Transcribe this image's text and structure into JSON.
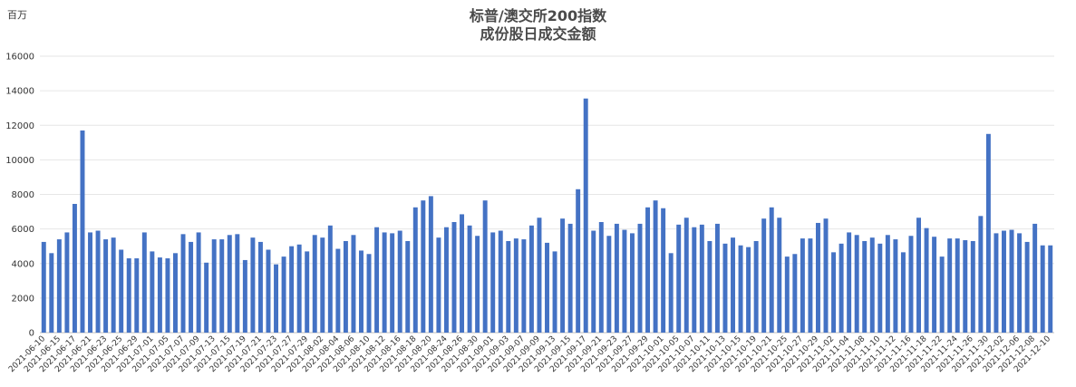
{
  "chart_data": {
    "type": "bar",
    "title": "标普/澳交所200指数",
    "subtitle": "成份股日成交金额",
    "unit_label": "百万",
    "xlabel": "",
    "ylabel": "",
    "ylim": [
      0,
      16000
    ],
    "yticks": [
      0,
      2000,
      4000,
      6000,
      8000,
      10000,
      12000,
      14000,
      16000
    ],
    "grid": true,
    "legend": "none",
    "bar_color": "#4472c4",
    "x_tick_labels": [
      "2021-06-10",
      "2021-06-15",
      "2021-06-17",
      "2021-06-21",
      "2021-06-23",
      "2021-06-25",
      "2021-06-29",
      "2021-07-01",
      "2021-07-05",
      "2021-07-07",
      "2021-07-09",
      "2021-07-13",
      "2021-07-15",
      "2021-07-19",
      "2021-07-21",
      "2021-07-23",
      "2021-07-27",
      "2021-07-29",
      "2021-08-02",
      "2021-08-04",
      "2021-08-06",
      "2021-08-10",
      "2021-08-12",
      "2021-08-16",
      "2021-08-18",
      "2021-08-20",
      "2021-08-24",
      "2021-08-26",
      "2021-08-30",
      "2021-09-01",
      "2021-09-03",
      "2021-09-07",
      "2021-09-09",
      "2021-09-13",
      "2021-09-15",
      "2021-09-17",
      "2021-09-21",
      "2021-09-23",
      "2021-09-27",
      "2021-09-29",
      "2021-10-01",
      "2021-10-05",
      "2021-10-07",
      "2021-10-11",
      "2021-10-13",
      "2021-10-15",
      "2021-10-19",
      "2021-10-21",
      "2021-10-25",
      "2021-10-27",
      "2021-10-29",
      "2021-11-02",
      "2021-11-04",
      "2021-11-08",
      "2021-11-10",
      "2021-11-12",
      "2021-11-16",
      "2021-11-18",
      "2021-11-22",
      "2021-11-24",
      "2021-11-26",
      "2021-11-30",
      "2021-12-02",
      "2021-12-06",
      "2021-12-08",
      "2021-12-10"
    ],
    "values": [
      5250,
      4600,
      5400,
      5800,
      7450,
      11700,
      5800,
      5900,
      5400,
      5500,
      4800,
      4300,
      4300,
      5800,
      4700,
      4350,
      4300,
      4600,
      5700,
      5250,
      5800,
      4050,
      5400,
      5400,
      5650,
      5700,
      4200,
      5500,
      5250,
      4800,
      3950,
      4400,
      5000,
      5100,
      4700,
      5650,
      5500,
      6200,
      4850,
      5300,
      5650,
      4750,
      4550,
      6100,
      5800,
      5750,
      5900,
      5300,
      7250,
      7650,
      7900,
      5500,
      6100,
      6400,
      6850,
      6200,
      5600,
      7650,
      5800,
      5900,
      5300,
      5450,
      5400,
      6200,
      6650,
      5200,
      4700,
      6600,
      6300,
      8300,
      13550,
      5900,
      6400,
      5600,
      6300,
      5950,
      5750,
      6300,
      7250,
      7650,
      7200,
      4600,
      6250,
      6650,
      6100,
      6250,
      5300,
      6300,
      5150,
      5500,
      5050,
      4950,
      5300,
      6600,
      7250,
      6650,
      4400,
      4550,
      5450,
      5450,
      6350,
      6600,
      4650,
      5150,
      5800,
      5650,
      5300,
      5500,
      5150,
      5650,
      5400,
      4650,
      5600,
      6650,
      6050,
      5550,
      4400,
      5450,
      5450,
      5350,
      5300,
      6750,
      11500,
      5750,
      5900,
      5950,
      5750,
      5250,
      6300,
      5050,
      5050
    ]
  }
}
